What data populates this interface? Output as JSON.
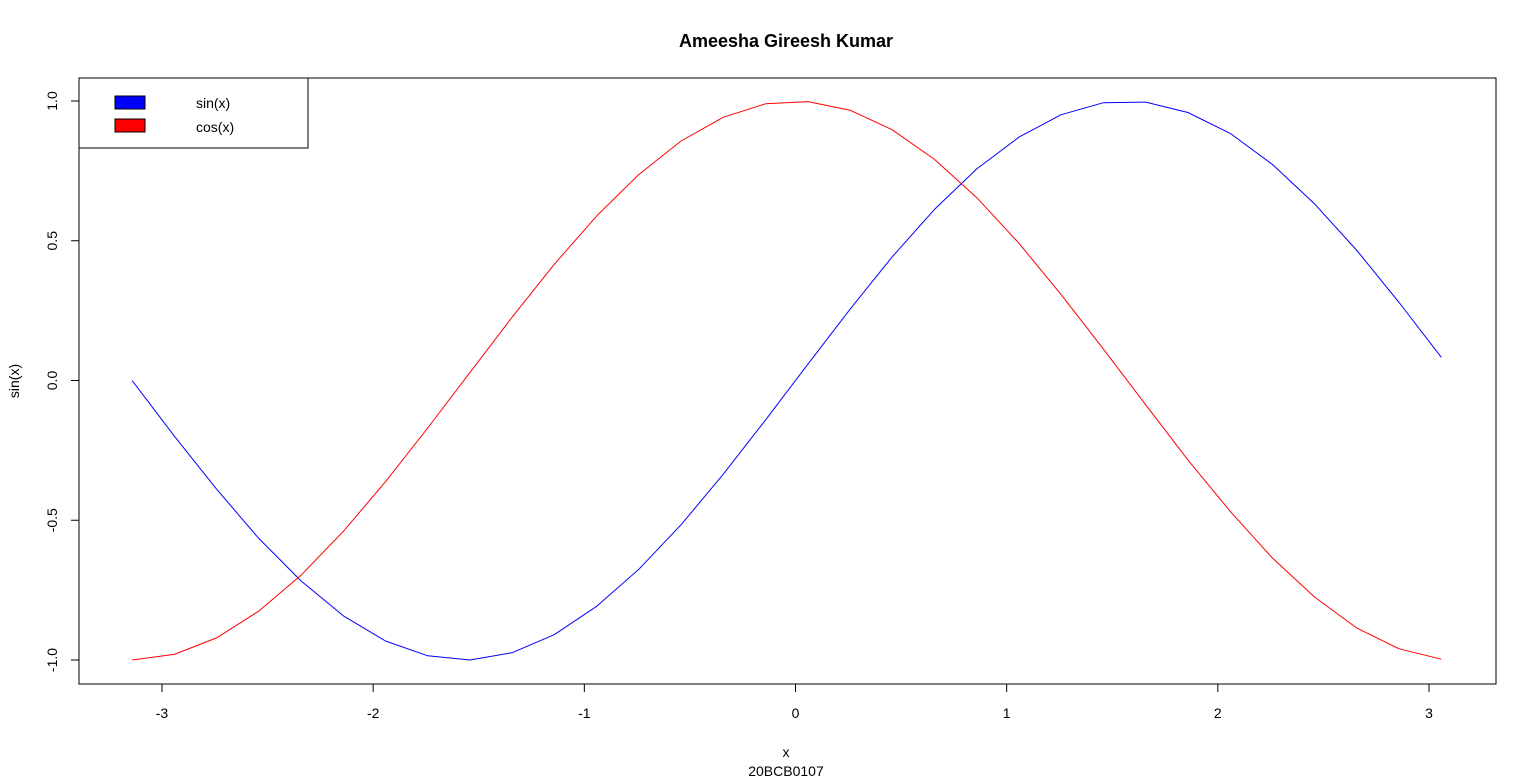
{
  "chart_data": {
    "type": "line",
    "title": "Ameesha Gireesh Kumar",
    "xlabel": "x",
    "subtitle": "20BCB0107",
    "ylabel": "sin(x)",
    "xlim": [
      -3.2,
      3.14
    ],
    "ylim": [
      -1.05,
      1.05
    ],
    "x_ticks": [
      -3,
      -2,
      -1,
      0,
      1,
      2,
      3
    ],
    "x_tick_labels": [
      "-3",
      "-2",
      "-1",
      "0",
      "1",
      "2",
      "3"
    ],
    "y_ticks": [
      -1.0,
      -0.5,
      0.0,
      0.5,
      1.0
    ],
    "y_tick_labels": [
      "-1.0",
      "-0.5",
      "0.0",
      "0.5",
      "1.0"
    ],
    "grid": false,
    "legend_position": "top-left",
    "x": [
      -3.1416,
      -2.9416,
      -2.7416,
      -2.5416,
      -2.3416,
      -2.1416,
      -1.9416,
      -1.7416,
      -1.5416,
      -1.3416,
      -1.1416,
      -0.9416,
      -0.7416,
      -0.5416,
      -0.3416,
      -0.1416,
      0.0584,
      0.2584,
      0.4584,
      0.6584,
      0.8584,
      1.0584,
      1.2584,
      1.4584,
      1.6584,
      1.8584,
      2.0584,
      2.2584,
      2.4584,
      2.6584,
      2.8584,
      3.0584
    ],
    "series": [
      {
        "name": "sin(x)",
        "color": "#0000ff",
        "values": [
          0.0,
          -0.199,
          -0.389,
          -0.565,
          -0.717,
          -0.842,
          -0.932,
          -0.985,
          -1.0,
          -0.974,
          -0.909,
          -0.808,
          -0.675,
          -0.516,
          -0.335,
          -0.141,
          0.058,
          0.255,
          0.443,
          0.612,
          0.757,
          0.871,
          0.951,
          0.994,
          0.996,
          0.959,
          0.884,
          0.773,
          0.632,
          0.465,
          0.279,
          0.083
        ]
      },
      {
        "name": "cos(x)",
        "color": "#ff0000",
        "values": [
          -1.0,
          -0.98,
          -0.921,
          -0.825,
          -0.697,
          -0.54,
          -0.362,
          -0.17,
          0.029,
          0.227,
          0.416,
          0.589,
          0.737,
          0.857,
          0.942,
          0.99,
          0.998,
          0.967,
          0.897,
          0.791,
          0.654,
          0.491,
          0.307,
          0.112,
          -0.087,
          -0.284,
          -0.468,
          -0.635,
          -0.775,
          -0.886,
          -0.96,
          -0.997
        ]
      }
    ]
  }
}
